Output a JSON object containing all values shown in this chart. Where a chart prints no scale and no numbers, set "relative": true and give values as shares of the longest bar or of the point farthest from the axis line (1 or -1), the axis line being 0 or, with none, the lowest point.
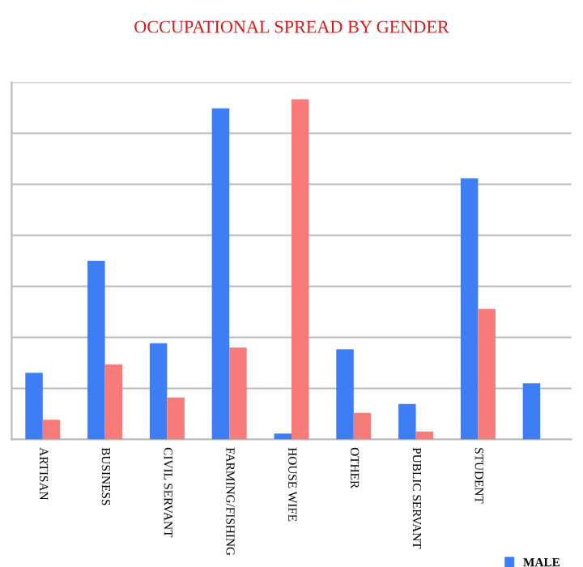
{
  "chart_data": {
    "type": "bar",
    "title": "OCCUPATIONAL SPREAD BY GENDER",
    "relative": true,
    "grid": "y",
    "legend": "bottom right",
    "categories": [
      "ARTISAN",
      "BUSINESS",
      "CIVIL SERVANT",
      "FARMING/FISHING",
      "HOUSE WIFE",
      "OTHER",
      "PUBLIC SERVANT",
      "STUDENT",
      null
    ],
    "series": [
      {
        "name": "MALE",
        "color": "#3d7ef7",
        "values": [
          0.196,
          0.525,
          0.283,
          0.973,
          0.017,
          0.265,
          0.104,
          0.767,
          0.165
        ]
      },
      {
        "color": "#f77b78",
        "values": [
          0.058,
          0.22,
          0.123,
          0.27,
          1,
          0.078,
          0.023,
          0.384,
          null
        ]
      }
    ]
  }
}
